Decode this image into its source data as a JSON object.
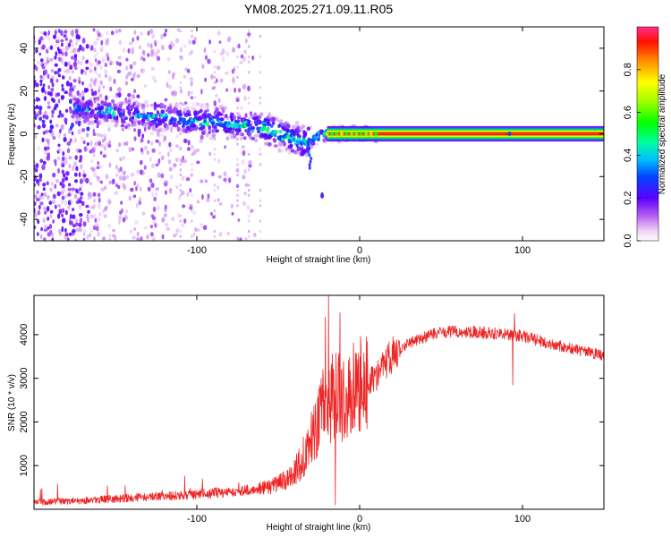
{
  "title": "YM08.2025.271.09.11.R05",
  "chart_data": [
    {
      "type": "heatmap",
      "name": "spectrogram",
      "xlabel": "Height of straight line (km)",
      "ylabel": "Frequency (Hz)",
      "xlim": [
        -200,
        150
      ],
      "ylim": [
        -50,
        50
      ],
      "x_ticks": [
        -100,
        0,
        100
      ],
      "y_ticks": [
        40,
        20,
        0,
        -20,
        -40
      ],
      "colorbar": {
        "label": "Normalized spectral amplitude",
        "range": [
          0,
          1
        ],
        "ticks": [
          0.0,
          0.2,
          0.4,
          0.6,
          0.8
        ]
      },
      "description_points": {
        "scatter_region_x": [
          -200,
          -65
        ],
        "band_center_hz": [
          [
            -150,
            10
          ],
          [
            -100,
            6
          ],
          [
            -60,
            3
          ],
          [
            -35,
            -4
          ],
          [
            -20,
            0
          ],
          [
            0,
            0
          ],
          [
            150,
            0
          ]
        ],
        "steady_line_from_x": 10,
        "isolated_blob": {
          "x": -23,
          "y": -29
        }
      }
    },
    {
      "type": "line",
      "name": "snr",
      "xlabel": "Height of straight line (km)",
      "ylabel": "SNR (10 * v/v)",
      "xlim": [
        -200,
        150
      ],
      "ylim": [
        0,
        4900
      ],
      "x_ticks": [
        -100,
        0,
        100
      ],
      "y_ticks": [
        1000,
        2000,
        3000,
        4000
      ],
      "color": "#ee2222",
      "profile": {
        "x": [
          -200,
          -150,
          -100,
          -70,
          -55,
          -45,
          -38,
          -30,
          -25,
          -20,
          -10,
          0,
          10,
          20,
          30,
          50,
          70,
          90,
          100,
          120,
          150
        ],
        "y": [
          150,
          230,
          330,
          420,
          500,
          650,
          900,
          1500,
          2000,
          2400,
          2500,
          2700,
          3000,
          3500,
          3800,
          4050,
          4050,
          4000,
          3950,
          3750,
          3500
        ]
      },
      "spikes": [
        {
          "x": -19,
          "y": 4900
        },
        {
          "x": -21,
          "y": 4400
        },
        {
          "x": -12,
          "y": 4500
        },
        {
          "x": 95,
          "y": 4480
        },
        {
          "x": 94,
          "y": 2850
        },
        {
          "x": -15,
          "y": 100
        }
      ]
    }
  ]
}
